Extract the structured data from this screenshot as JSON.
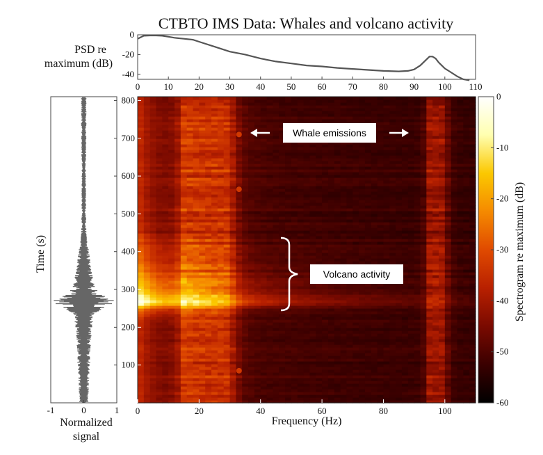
{
  "chart_data": [
    {
      "id": "psd",
      "type": "line",
      "title": "CTBTO IMS Data: Whales and volcano activity",
      "ylabel": [
        "PSD re",
        "maximum (dB)"
      ],
      "xlim": [
        0,
        110
      ],
      "ylim": [
        -45,
        0
      ],
      "xticks": [
        0,
        10,
        20,
        30,
        40,
        50,
        60,
        70,
        80,
        90,
        100,
        110
      ],
      "yticks": [
        0,
        -20,
        -40
      ],
      "x": [
        0,
        2,
        4,
        6,
        8,
        10,
        12,
        15,
        18,
        20,
        25,
        30,
        35,
        40,
        45,
        50,
        55,
        60,
        65,
        70,
        75,
        80,
        85,
        88,
        90,
        92,
        94,
        95,
        96,
        97,
        98,
        100,
        102,
        104,
        106,
        108
      ],
      "y": [
        -4,
        -1,
        0,
        0,
        -1,
        -2,
        -3,
        -4,
        -5,
        -7,
        -12,
        -17,
        -20,
        -24,
        -27,
        -29,
        -31,
        -32,
        -33.5,
        -34.5,
        -35.5,
        -36.5,
        -37,
        -36.5,
        -35,
        -31,
        -25,
        -22,
        -22,
        -24,
        -28,
        -34,
        -38,
        -42,
        -45,
        -46
      ]
    },
    {
      "id": "signal",
      "type": "line",
      "xlabel": [
        "Normalized",
        "signal"
      ],
      "ylabel": "Time (s)",
      "xlim": [
        -1,
        1
      ],
      "ylim": [
        0,
        810
      ],
      "xticks": [
        -1,
        0,
        1
      ],
      "yticks": [
        100,
        200,
        300,
        400,
        500,
        600,
        700,
        800
      ],
      "time": [
        0,
        40,
        80,
        120,
        160,
        200,
        230,
        245,
        255,
        262,
        268,
        275,
        285,
        300,
        320,
        350,
        380,
        400,
        420,
        450,
        500,
        550,
        600,
        650,
        700,
        750,
        810
      ],
      "envelope": [
        0.14,
        0.16,
        0.18,
        0.2,
        0.22,
        0.25,
        0.32,
        0.5,
        0.7,
        0.88,
        0.95,
        0.85,
        0.55,
        0.38,
        0.3,
        0.24,
        0.2,
        0.17,
        0.12,
        0.08,
        0.07,
        0.07,
        0.07,
        0.07,
        0.08,
        0.08,
        0.08
      ]
    },
    {
      "id": "spectrogram",
      "type": "heatmap",
      "xlabel": "Frequency (Hz)",
      "xlim": [
        0,
        110
      ],
      "ylim": [
        0,
        810
      ],
      "xticks": [
        0,
        20,
        40,
        60,
        80,
        100
      ],
      "yticks": [
        100,
        200,
        300,
        400,
        500,
        600,
        700,
        800
      ],
      "colorbar": {
        "label": "Spectrogram re maximum (dB)",
        "range": [
          -60,
          0
        ],
        "ticks": [
          0,
          -10,
          -20,
          -30,
          -40,
          -50,
          -60
        ],
        "colormap": [
          "#000000",
          "#3a0000",
          "#7a0a00",
          "#b82000",
          "#e04a00",
          "#f58a00",
          "#fbc800",
          "#ffffb0",
          "#ffffff"
        ]
      },
      "annotations": [
        {
          "text": "Whale emissions",
          "freq": 50,
          "time": 715
        },
        {
          "text": "Volcano activity",
          "freq": 68,
          "time": 335
        }
      ],
      "features": {
        "whale_bands_hz": [
          [
            15,
            30
          ],
          [
            95,
            100
          ]
        ],
        "whale_spot_hz": 33,
        "volcano_time_s": [
          240,
          420
        ],
        "volcano_peak_time_s": 265
      }
    }
  ]
}
